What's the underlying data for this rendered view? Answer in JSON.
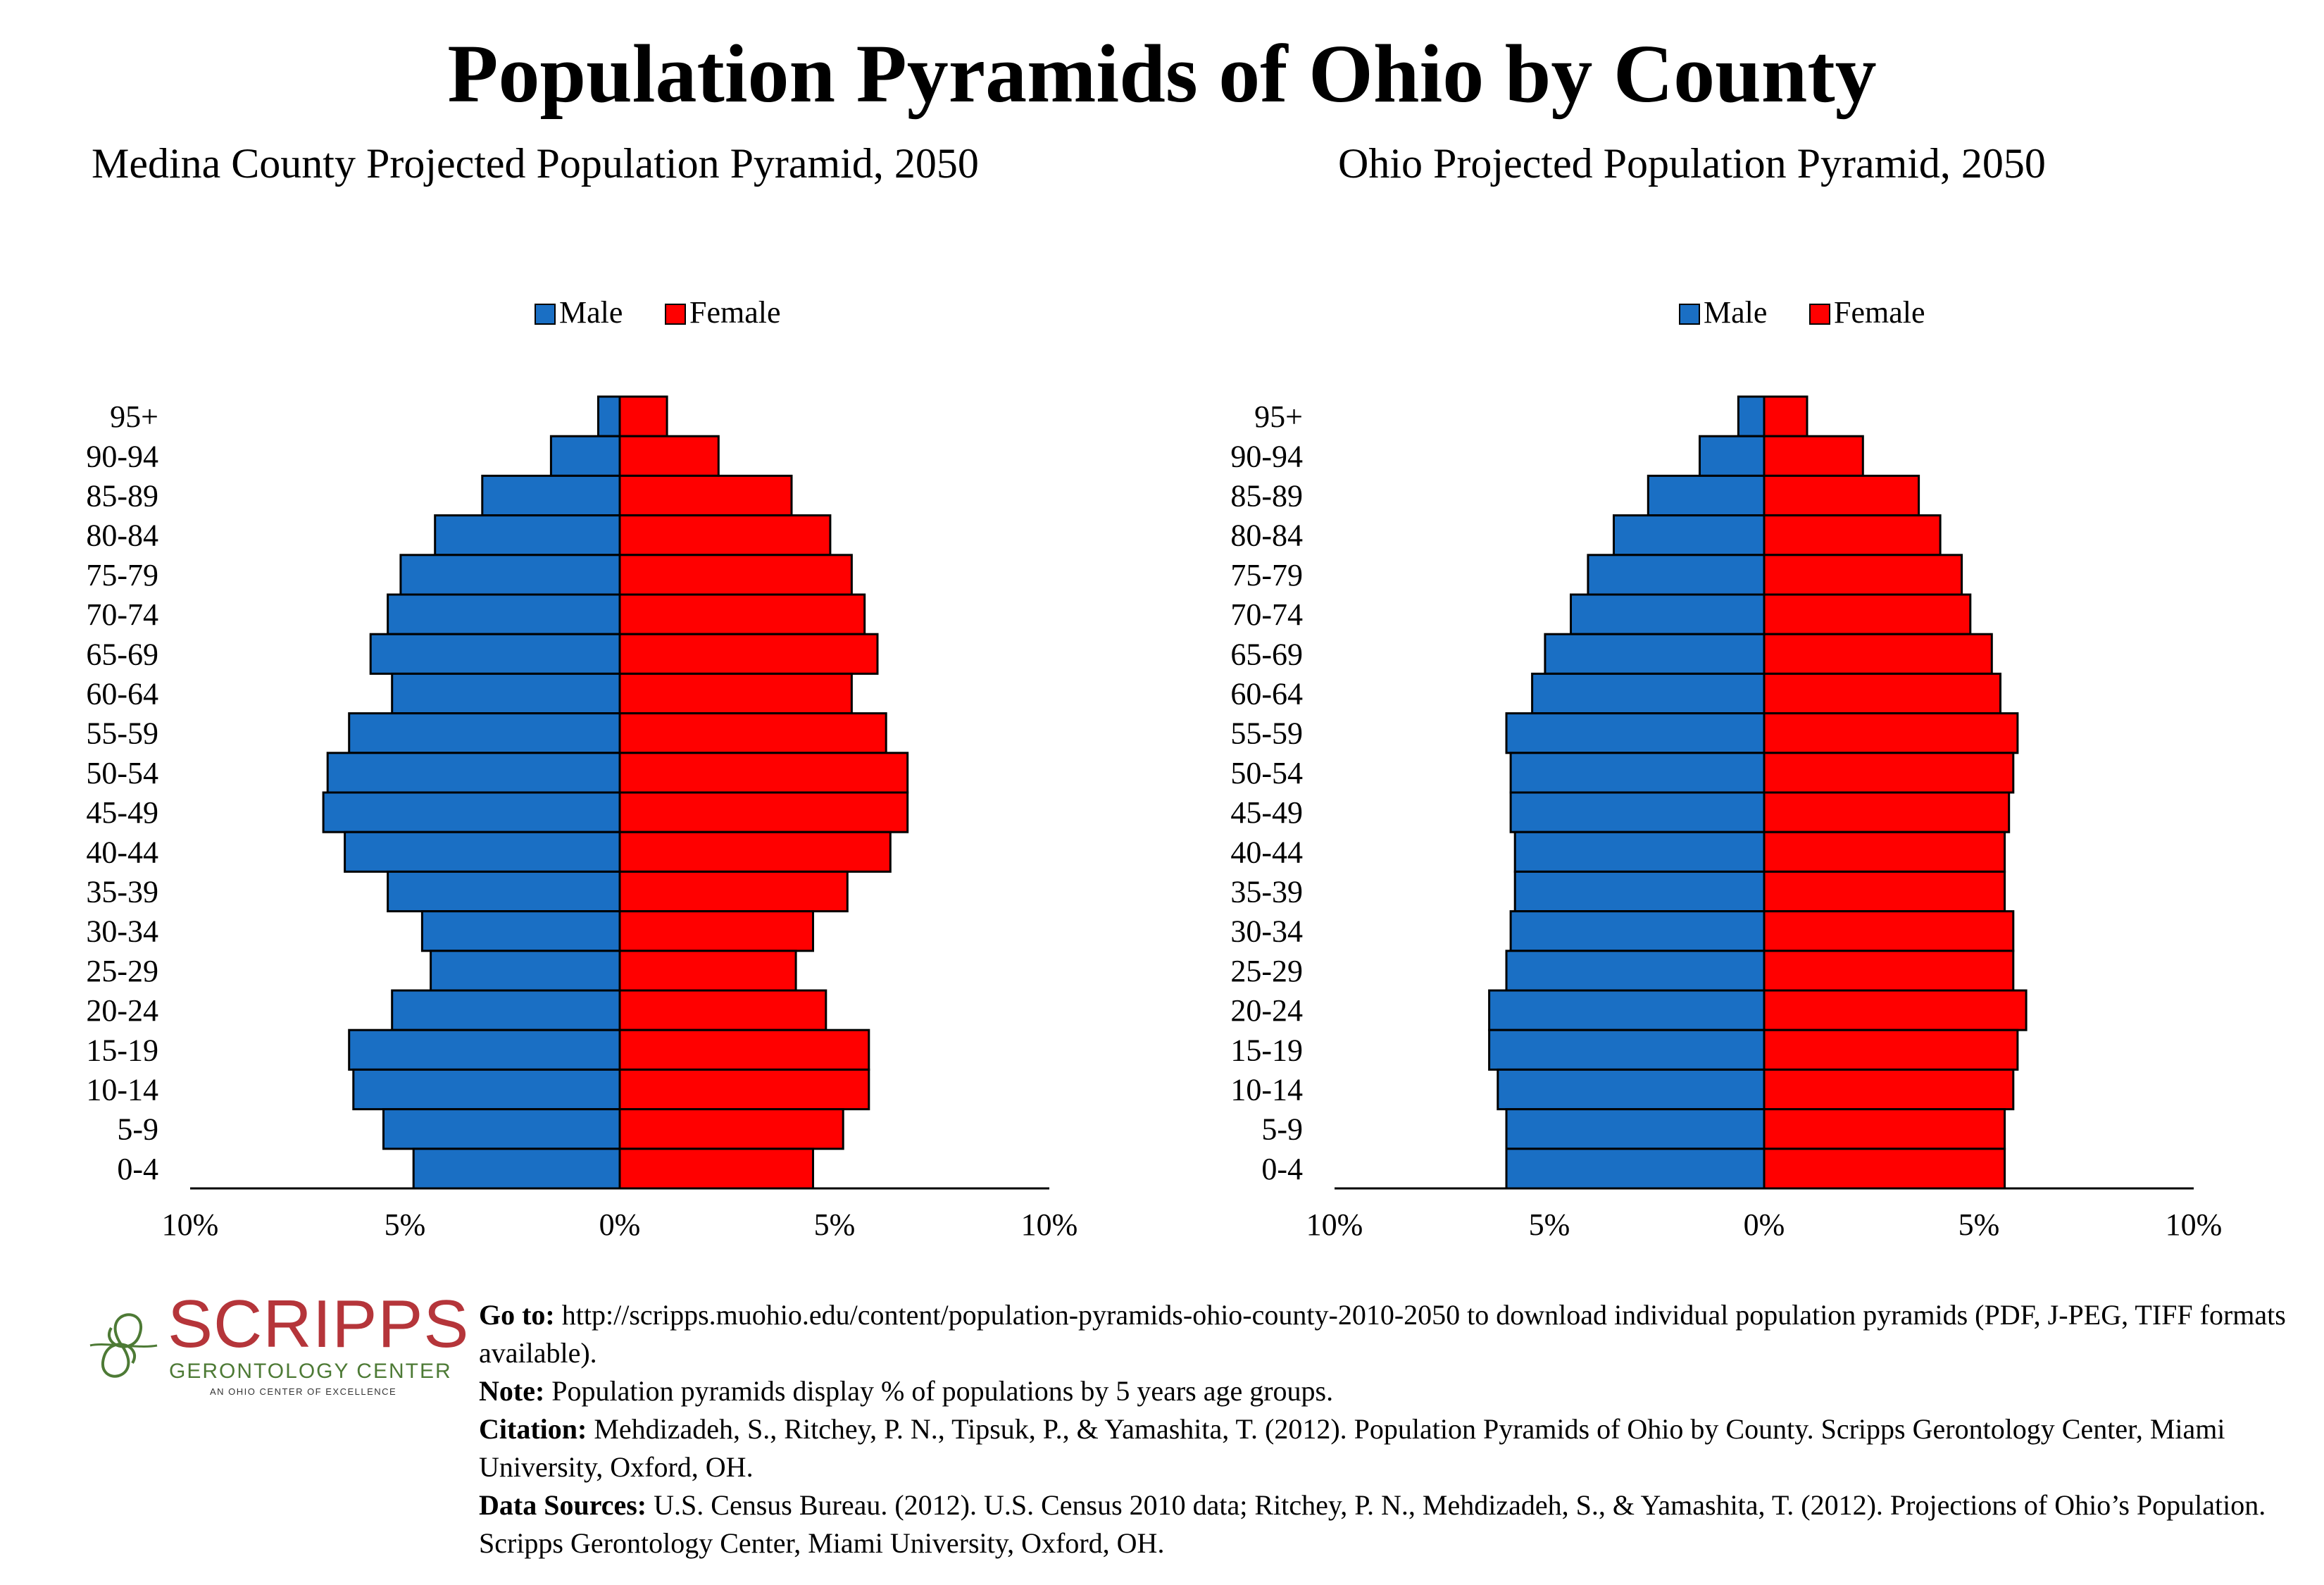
{
  "title": "Population Pyramids of Ohio by County",
  "colors": {
    "male": "#1a6fc4",
    "female": "#ff0000",
    "logo_red": "#b5353a",
    "logo_green": "#4d7a35"
  },
  "legend": {
    "male": "Male",
    "female": "Female"
  },
  "chart_data": [
    {
      "type": "bar",
      "orientation": "horizontal-pyramid",
      "title": "Medina County Projected Population Pyramid, 2050",
      "categories": [
        "95+",
        "90-94",
        "85-89",
        "80-84",
        "75-79",
        "70-74",
        "65-69",
        "60-64",
        "55-59",
        "50-54",
        "45-49",
        "40-44",
        "35-39",
        "30-34",
        "25-29",
        "20-24",
        "15-19",
        "10-14",
        "5-9",
        "0-4"
      ],
      "series": [
        {
          "name": "Male",
          "values": [
            0.5,
            1.6,
            3.2,
            4.3,
            5.1,
            5.4,
            5.8,
            5.3,
            6.3,
            6.8,
            6.9,
            6.4,
            5.4,
            4.6,
            4.4,
            5.3,
            6.3,
            6.2,
            5.5,
            4.8
          ]
        },
        {
          "name": "Female",
          "values": [
            1.1,
            2.3,
            4.0,
            4.9,
            5.4,
            5.7,
            6.0,
            5.4,
            6.2,
            6.7,
            6.7,
            6.3,
            5.3,
            4.5,
            4.1,
            4.8,
            5.8,
            5.8,
            5.2,
            4.5
          ]
        }
      ],
      "xlim": [
        -10,
        10
      ],
      "xticks": [
        "10%",
        "5%",
        "0%",
        "5%",
        "10%"
      ],
      "legend_position": "top"
    },
    {
      "type": "bar",
      "orientation": "horizontal-pyramid",
      "title": "Ohio Projected Population Pyramid, 2050",
      "categories": [
        "95+",
        "90-94",
        "85-89",
        "80-84",
        "75-79",
        "70-74",
        "65-69",
        "60-64",
        "55-59",
        "50-54",
        "45-49",
        "40-44",
        "35-39",
        "30-34",
        "25-29",
        "20-24",
        "15-19",
        "10-14",
        "5-9",
        "0-4"
      ],
      "series": [
        {
          "name": "Male",
          "values": [
            0.6,
            1.5,
            2.7,
            3.5,
            4.1,
            4.5,
            5.1,
            5.4,
            6.0,
            5.9,
            5.9,
            5.8,
            5.8,
            5.9,
            6.0,
            6.4,
            6.4,
            6.2,
            6.0,
            6.0
          ]
        },
        {
          "name": "Female",
          "values": [
            1.0,
            2.3,
            3.6,
            4.1,
            4.6,
            4.8,
            5.3,
            5.5,
            5.9,
            5.8,
            5.7,
            5.6,
            5.6,
            5.8,
            5.8,
            6.1,
            5.9,
            5.8,
            5.6,
            5.6
          ]
        }
      ],
      "xlim": [
        -10,
        10
      ],
      "xticks": [
        "10%",
        "5%",
        "0%",
        "5%",
        "10%"
      ],
      "legend_position": "top"
    }
  ],
  "logo": {
    "name": "SCRIPPS",
    "subtitle": "GERONTOLOGY CENTER",
    "tagline": "AN OHIO CENTER OF EXCELLENCE"
  },
  "footer": {
    "goto_label": "Go to:",
    "goto_text": " http://scripps.muohio.edu/content/population-pyramids-ohio-county-2010-2050 to download individual population pyramids (PDF, J-PEG, TIFF formats available).",
    "note_label": "Note:",
    "note_text": " Population pyramids display % of populations by 5 years age groups.",
    "citation_label": "Citation:",
    "citation_text": " Mehdizadeh, S., Ritchey, P. N., Tipsuk, P., & Yamashita, T. (2012). Population Pyramids of Ohio by County. Scripps Gerontology Center, Miami University, Oxford, OH.",
    "sources_label": "Data Sources:",
    "sources_text": " U.S. Census Bureau. (2012). U.S. Census 2010 data; Ritchey, P. N., Mehdizadeh, S., & Yamashita, T. (2012). Projections of Ohio’s Population. Scripps Gerontology Center, Miami University, Oxford, OH."
  }
}
